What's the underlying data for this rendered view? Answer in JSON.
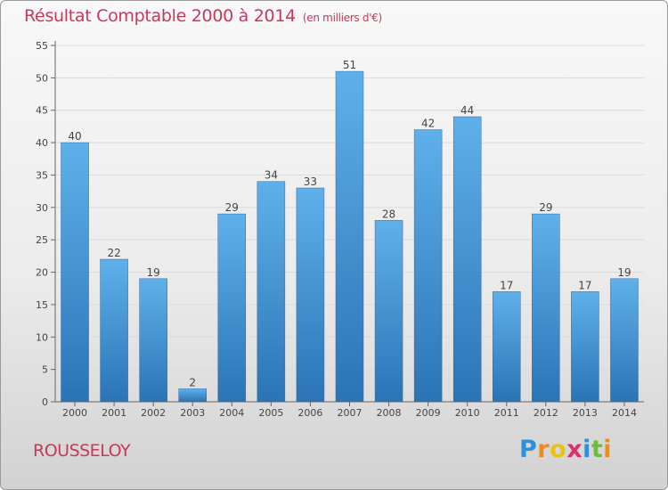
{
  "chart_data": {
    "type": "bar",
    "title": "Résultat Comptable 2000 à 2014",
    "subtitle": "(en milliers d'€)",
    "categories": [
      "2000",
      "2001",
      "2002",
      "2003",
      "2004",
      "2005",
      "2006",
      "2007",
      "2008",
      "2009",
      "2010",
      "2011",
      "2012",
      "2013",
      "2014"
    ],
    "values": [
      40,
      22,
      19,
      2,
      29,
      34,
      33,
      51,
      28,
      42,
      44,
      17,
      29,
      17,
      19
    ],
    "ylim": [
      0,
      55
    ],
    "yticks": [
      0,
      5,
      10,
      15,
      20,
      25,
      30,
      35,
      40,
      45,
      50,
      55
    ],
    "xlabel": "",
    "ylabel": "",
    "grid": true,
    "colors": {
      "bar_top": "#5fb0ea",
      "bar_bottom": "#2a74b6",
      "title": "#c8385a"
    }
  },
  "location": "ROUSSELOY",
  "logo": {
    "letters": [
      {
        "char": "P",
        "color": "#2f8fd8"
      },
      {
        "char": "r",
        "color": "#f08a1c"
      },
      {
        "char": "o",
        "color": "#e8c40f"
      },
      {
        "char": "x",
        "color": "#d8336a"
      },
      {
        "char": "i",
        "color": "#2f8fd8"
      },
      {
        "char": "t",
        "color": "#6cbd3c"
      },
      {
        "char": "i",
        "color": "#f08a1c"
      }
    ]
  }
}
